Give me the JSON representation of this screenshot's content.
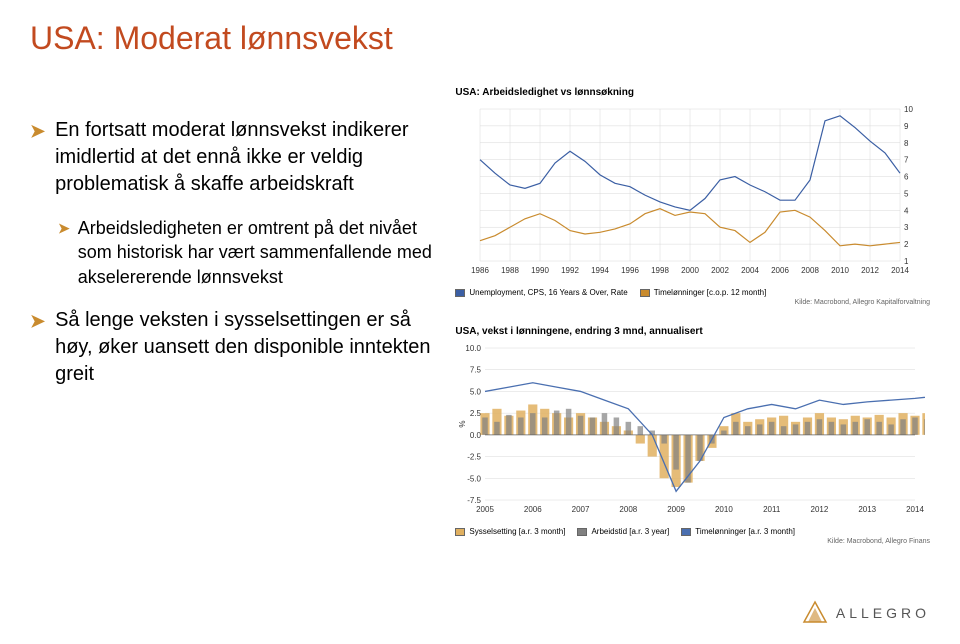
{
  "title": {
    "text": "USA: Moderat lønnsvekst",
    "color": "#c24a1f",
    "fontsize": 32
  },
  "bullets": [
    {
      "level": 0,
      "text": "En fortsatt moderat lønnsvekst indikerer imidlertid at det ennå ikke er veldig problematisk å skaffe arbeidskraft"
    },
    {
      "level": 1,
      "text": "Arbeidsledigheten er omtrent på det nivået som historisk har vært sammenfallende med akselererende lønnsvekst"
    },
    {
      "level": 0,
      "text": "Så lenge veksten i sysselsettingen er så høy, øker uansett den disponible inntekten greit"
    }
  ],
  "accent_color": "#c98b2e",
  "chart1": {
    "type": "line",
    "title": "USA: Arbeidsledighet vs lønnsøkning",
    "x": {
      "min": 1986,
      "max": 2014,
      "ticks": [
        1986,
        1988,
        1990,
        1992,
        1994,
        1996,
        1998,
        2000,
        2002,
        2004,
        2006,
        2008,
        2010,
        2012,
        2014
      ]
    },
    "y": {
      "min": 1,
      "max": 10,
      "ticks": [
        1,
        2,
        3,
        4,
        5,
        6,
        7,
        8,
        9,
        10
      ]
    },
    "series": [
      {
        "name": "Unemployment, CPS, 16 Years & Over, Rate",
        "color": "#3b5fa4",
        "width": 1.2,
        "points": [
          [
            1986,
            7.0
          ],
          [
            1987,
            6.2
          ],
          [
            1988,
            5.5
          ],
          [
            1989,
            5.3
          ],
          [
            1990,
            5.6
          ],
          [
            1991,
            6.8
          ],
          [
            1992,
            7.5
          ],
          [
            1993,
            6.9
          ],
          [
            1994,
            6.1
          ],
          [
            1995,
            5.6
          ],
          [
            1996,
            5.4
          ],
          [
            1997,
            4.9
          ],
          [
            1998,
            4.5
          ],
          [
            1999,
            4.2
          ],
          [
            2000,
            4.0
          ],
          [
            2001,
            4.7
          ],
          [
            2002,
            5.8
          ],
          [
            2003,
            6.0
          ],
          [
            2004,
            5.5
          ],
          [
            2005,
            5.1
          ],
          [
            2006,
            4.6
          ],
          [
            2007,
            4.6
          ],
          [
            2008,
            5.8
          ],
          [
            2009,
            9.3
          ],
          [
            2010,
            9.6
          ],
          [
            2011,
            8.9
          ],
          [
            2012,
            8.1
          ],
          [
            2013,
            7.4
          ],
          [
            2014,
            6.2
          ]
        ]
      },
      {
        "name": "Timelønninger [c.o.p. 12 month]",
        "color": "#c98b2e",
        "width": 1.2,
        "points": [
          [
            1986,
            2.2
          ],
          [
            1987,
            2.5
          ],
          [
            1988,
            3.0
          ],
          [
            1989,
            3.5
          ],
          [
            1990,
            3.8
          ],
          [
            1991,
            3.4
          ],
          [
            1992,
            2.8
          ],
          [
            1993,
            2.6
          ],
          [
            1994,
            2.7
          ],
          [
            1995,
            2.9
          ],
          [
            1996,
            3.2
          ],
          [
            1997,
            3.8
          ],
          [
            1998,
            4.1
          ],
          [
            1999,
            3.7
          ],
          [
            2000,
            3.9
          ],
          [
            2001,
            3.8
          ],
          [
            2002,
            3.0
          ],
          [
            2003,
            2.8
          ],
          [
            2004,
            2.1
          ],
          [
            2005,
            2.7
          ],
          [
            2006,
            3.9
          ],
          [
            2007,
            4.0
          ],
          [
            2008,
            3.6
          ],
          [
            2009,
            2.8
          ],
          [
            2010,
            1.9
          ],
          [
            2011,
            2.0
          ],
          [
            2012,
            1.9
          ],
          [
            2013,
            2.0
          ],
          [
            2014,
            2.1
          ]
        ]
      }
    ],
    "source": "Kilde: Macrobond, Allegro Kapitalforvaltning",
    "background_color": "#ffffff",
    "grid_color": "#d8d8d8"
  },
  "chart2": {
    "type": "bar",
    "title": "USA, vekst i lønningene, endring 3 mnd, annualisert",
    "x": {
      "min": 2005,
      "max": 2014,
      "ticks": [
        2005,
        2006,
        2007,
        2008,
        2009,
        2010,
        2011,
        2012,
        2013,
        2014
      ]
    },
    "y": {
      "min": -7.5,
      "max": 10.0,
      "ticks": [
        -7.5,
        -5.0,
        -2.5,
        0.0,
        2.5,
        5.0,
        7.5,
        10.0
      ],
      "label": "%"
    },
    "series": [
      {
        "name": "Sysselsetting [a.r. 3 month]",
        "color": "#e0b060"
      },
      {
        "name": "Arbeidstid [a.r. 3 year]",
        "color": "#808080"
      },
      {
        "name": "Timelønninger [a.r. 3 month]",
        "color": "#4a6fb0"
      }
    ],
    "bars": {
      "color_main": "#e0b060",
      "color_alt": "#808080",
      "line_color": "#4a6fb0",
      "values": [
        [
          2005.0,
          2.5,
          2.0
        ],
        [
          2005.25,
          3.0,
          1.5
        ],
        [
          2005.5,
          2.2,
          2.3
        ],
        [
          2005.75,
          2.8,
          2.0
        ],
        [
          2006.0,
          3.5,
          2.5
        ],
        [
          2006.25,
          3.0,
          2.0
        ],
        [
          2006.5,
          2.5,
          2.8
        ],
        [
          2006.75,
          2.0,
          3.0
        ],
        [
          2007.0,
          2.5,
          2.2
        ],
        [
          2007.25,
          2.0,
          2.0
        ],
        [
          2007.5,
          1.5,
          2.5
        ],
        [
          2007.75,
          1.0,
          2.0
        ],
        [
          2008.0,
          0.5,
          1.5
        ],
        [
          2008.25,
          -1.0,
          1.0
        ],
        [
          2008.5,
          -2.5,
          0.5
        ],
        [
          2008.75,
          -5.0,
          -1.0
        ],
        [
          2009.0,
          -6.0,
          -4.0
        ],
        [
          2009.25,
          -5.5,
          -5.5
        ],
        [
          2009.5,
          -3.0,
          -3.0
        ],
        [
          2009.75,
          -1.5,
          -1.0
        ],
        [
          2010.0,
          1.0,
          0.5
        ],
        [
          2010.25,
          2.5,
          1.5
        ],
        [
          2010.5,
          1.5,
          1.0
        ],
        [
          2010.75,
          1.8,
          1.2
        ],
        [
          2011.0,
          2.0,
          1.5
        ],
        [
          2011.25,
          2.2,
          1.0
        ],
        [
          2011.5,
          1.5,
          1.2
        ],
        [
          2011.75,
          2.0,
          1.5
        ],
        [
          2012.0,
          2.5,
          1.8
        ],
        [
          2012.25,
          2.0,
          1.5
        ],
        [
          2012.5,
          1.8,
          1.2
        ],
        [
          2012.75,
          2.2,
          1.5
        ],
        [
          2013.0,
          2.0,
          1.8
        ],
        [
          2013.25,
          2.3,
          1.5
        ],
        [
          2013.5,
          2.0,
          1.2
        ],
        [
          2013.75,
          2.5,
          1.8
        ],
        [
          2014.0,
          2.2,
          2.0
        ],
        [
          2014.25,
          2.5,
          1.8
        ],
        [
          2014.5,
          2.8,
          1.5
        ]
      ],
      "line_values": [
        [
          2005,
          5.0
        ],
        [
          2005.5,
          5.5
        ],
        [
          2006,
          6.0
        ],
        [
          2006.5,
          5.5
        ],
        [
          2007,
          5.0
        ],
        [
          2007.5,
          4.0
        ],
        [
          2008,
          3.0
        ],
        [
          2008.5,
          0.0
        ],
        [
          2009,
          -6.5
        ],
        [
          2009.5,
          -3.0
        ],
        [
          2010,
          2.0
        ],
        [
          2010.5,
          3.0
        ],
        [
          2011,
          3.5
        ],
        [
          2011.5,
          3.0
        ],
        [
          2012,
          4.0
        ],
        [
          2012.5,
          3.5
        ],
        [
          2013,
          3.8
        ],
        [
          2013.5,
          4.0
        ],
        [
          2014,
          4.2
        ],
        [
          2014.5,
          4.5
        ]
      ]
    },
    "source": "Kilde: Macrobond, Allegro Finans",
    "background_color": "#ffffff",
    "grid_color": "#d8d8d8"
  },
  "logo": {
    "text": "ALLEGRO"
  }
}
